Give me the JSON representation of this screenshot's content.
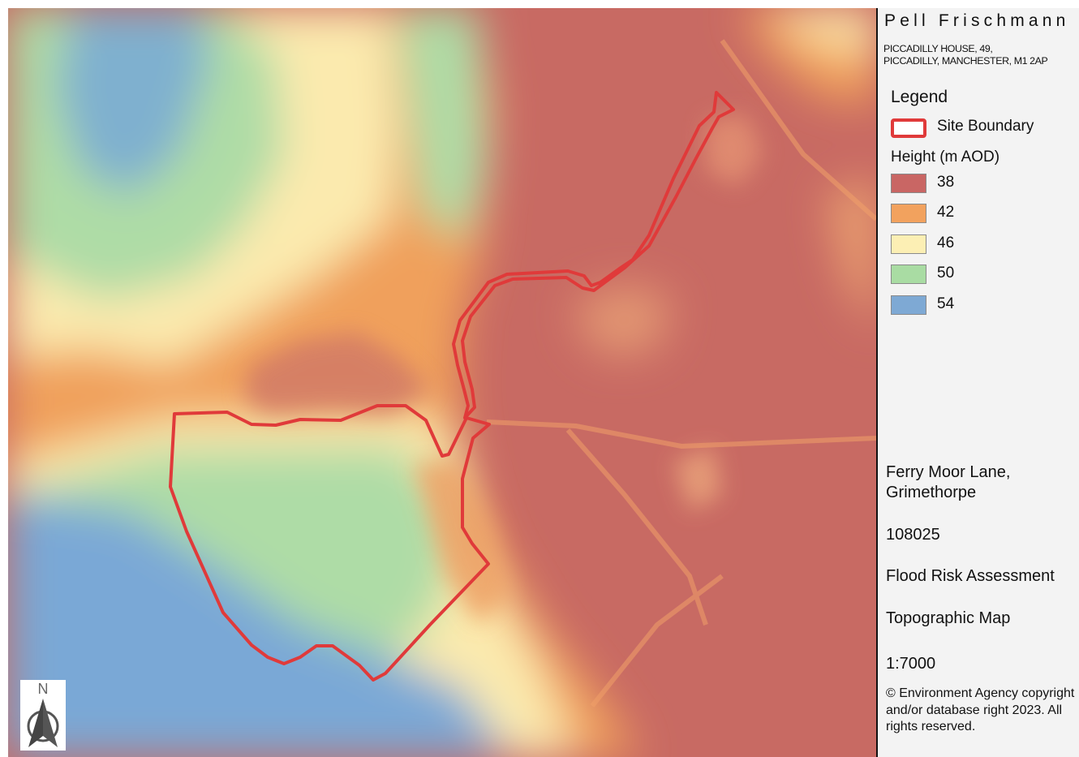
{
  "company": "Pell Frischmann",
  "address": [
    "PICCADILLY HOUSE, 49,",
    "PICCADILLY, MANCHESTER, M1 2AP"
  ],
  "legend": {
    "title": "Legend",
    "boundary_label": "Site Boundary",
    "boundary_color": "#e03a3a",
    "height_title": "Height (m AOD)",
    "classes": [
      {
        "label": "38",
        "color": "#c96664"
      },
      {
        "label": "42",
        "color": "#f2a25e"
      },
      {
        "label": "46",
        "color": "#fcefb4"
      },
      {
        "label": "50",
        "color": "#a9dca3"
      },
      {
        "label": "54",
        "color": "#7ea9d4"
      }
    ]
  },
  "project": {
    "site_name": [
      "Ferry Moor Lane,",
      "Grimethorpe"
    ],
    "number": "108025",
    "report": "Flood Risk Assessment",
    "map_title": "Topographic Map",
    "scale": "1:7000",
    "copyright": "© Environment Agency copyright and/or database right 2023. All rights reserved."
  },
  "north_arrow": {
    "label": "N",
    "icon": "north-arrow-icon"
  }
}
